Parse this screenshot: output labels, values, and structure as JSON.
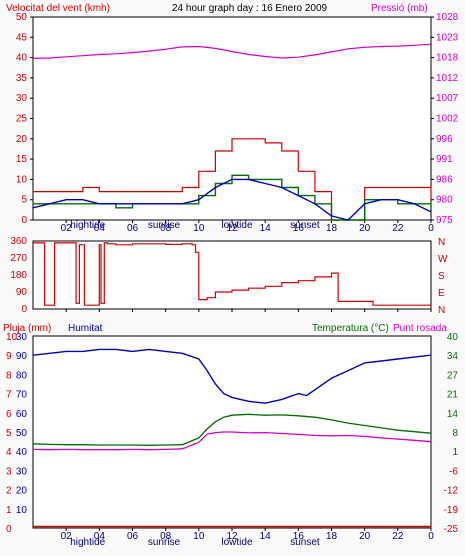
{
  "title": "24 hour graph day : 16 Enero 2009",
  "colors": {
    "wind": "#d00000",
    "gust": "#d00000",
    "avg": "#0000c0",
    "green": "#007000",
    "pressure": "#d000d0",
    "humidity": "#0000c0",
    "temp": "#007000",
    "dew": "#d000d0",
    "rain": "#d00000",
    "tick": "#000080"
  },
  "x_ticks": [
    "02",
    "04",
    "06",
    "08",
    "10",
    "12",
    "14",
    "16",
    "18",
    "20",
    "22",
    "0"
  ],
  "events": [
    "hightide",
    "sunrise",
    "lowtide",
    "sunset"
  ],
  "chart_data": [
    {
      "type": "line",
      "id": "wind-pressure",
      "left_label": "Velocitat del vent (kmh)",
      "right_label": "Pressió (mb)",
      "y_ticks": [
        "0",
        "5",
        "10",
        "15",
        "20",
        "25",
        "30",
        "35",
        "40",
        "45",
        "50"
      ],
      "ylim": [
        0,
        50
      ],
      "y2_ticks": [
        "975",
        "980",
        "986",
        "991",
        "996",
        "1002",
        "1007",
        "1012",
        "1018",
        "1023",
        "1028"
      ],
      "y2lim": [
        975,
        1028
      ],
      "series": [
        {
          "role": "gust",
          "x": [
            0,
            1,
            2,
            3,
            4,
            5,
            6,
            7,
            8,
            9,
            10,
            11,
            12,
            13,
            14,
            15,
            16,
            17,
            18,
            19,
            20,
            21,
            22,
            23,
            24
          ],
          "values": [
            7,
            7,
            7,
            8,
            7,
            7,
            7,
            7,
            7,
            8,
            12,
            17,
            20,
            20,
            19,
            17,
            12,
            7,
            0,
            0,
            8,
            8,
            8,
            8,
            5
          ]
        },
        {
          "role": "wind",
          "x": [
            0,
            1,
            2,
            3,
            4,
            5,
            6,
            7,
            8,
            9,
            10,
            11,
            12,
            13,
            14,
            15,
            16,
            17,
            18,
            19,
            20,
            21,
            22,
            23,
            24
          ],
          "values": [
            4,
            4,
            4,
            4,
            4,
            3,
            4,
            4,
            4,
            4,
            6,
            9,
            11,
            10,
            10,
            8,
            6,
            4,
            0,
            0,
            5,
            5,
            4,
            4,
            2
          ]
        },
        {
          "role": "avg",
          "x": [
            0,
            1,
            2,
            3,
            4,
            5,
            6,
            7,
            8,
            9,
            10,
            11,
            12,
            13,
            14,
            15,
            16,
            17,
            18,
            19,
            20,
            21,
            22,
            23,
            24
          ],
          "values": [
            3,
            4,
            5,
            5,
            4,
            4,
            4,
            4,
            4,
            4,
            5,
            8,
            10,
            10,
            9,
            8,
            6,
            4,
            1,
            0,
            4,
            5,
            5,
            4,
            2
          ]
        },
        {
          "role": "pressure",
          "x": [
            0,
            1,
            2,
            3,
            4,
            5,
            6,
            7,
            8,
            9,
            10,
            11,
            12,
            13,
            14,
            15,
            16,
            17,
            18,
            19,
            20,
            21,
            22,
            23,
            24
          ],
          "values": [
            1017.2,
            1017.3,
            1017.6,
            1017.9,
            1018.2,
            1018.4,
            1018.7,
            1019.1,
            1019.6,
            1020.2,
            1020.3,
            1019.8,
            1019.0,
            1018.2,
            1017.7,
            1017.3,
            1017.5,
            1018.1,
            1018.9,
            1019.7,
            1020.1,
            1020.3,
            1020.4,
            1020.6,
            1020.9
          ]
        }
      ]
    },
    {
      "type": "line",
      "id": "wind-direction",
      "y_ticks": [
        "0",
        "90",
        "180",
        "270",
        "360"
      ],
      "ylim": [
        0,
        360
      ],
      "y2_ticks": [
        "N",
        "W",
        "S",
        "E",
        "N"
      ],
      "series": [
        {
          "role": "direction",
          "x": [
            0,
            0.6,
            0.7,
            1.2,
            1.3,
            2.5,
            2.6,
            2.8,
            3.0,
            3.1,
            4.0,
            4.1,
            4.3,
            4.5,
            5.0,
            6.0,
            7.0,
            8.0,
            9.0,
            9.5,
            9.6,
            9.8,
            10.0,
            10.5,
            11.0,
            12.0,
            13.0,
            14.0,
            15.0,
            16.0,
            17.0,
            18.0,
            18.3,
            18.4,
            19.0,
            20.0,
            20.5,
            21.0,
            22.0,
            23.0,
            24.0
          ],
          "values": [
            350,
            350,
            20,
            20,
            350,
            350,
            30,
            340,
            340,
            20,
            340,
            30,
            350,
            345,
            340,
            345,
            345,
            342,
            345,
            345,
            340,
            300,
            50,
            60,
            90,
            100,
            110,
            120,
            140,
            150,
            170,
            190,
            190,
            40,
            40,
            40,
            20,
            20,
            20,
            20,
            20
          ]
        }
      ]
    },
    {
      "type": "line",
      "id": "rain-humidity-temp",
      "left_label": "Pluja (mm)",
      "mid_label": "Humitat",
      "right_label": "Temperatura (°C)",
      "right_label2": "Punt rosada",
      "y_ticks": [
        "0",
        "1",
        "2",
        "3",
        "4",
        "5",
        "6",
        "7",
        "8",
        "9",
        "10"
      ],
      "y_ticks_humidity": [
        "0",
        "10",
        "20",
        "30",
        "40",
        "50",
        "60",
        "70",
        "80",
        "90",
        "100"
      ],
      "y_ticks_top": "30",
      "ylim": [
        0,
        10
      ],
      "y2_ticks": [
        "-25",
        "-19",
        "-12",
        "-6",
        "1",
        "8",
        "14",
        "21",
        "27",
        "34",
        "40"
      ],
      "y2lim": [
        -25,
        40
      ],
      "series": [
        {
          "role": "humidity",
          "x": [
            0,
            1,
            2,
            3,
            4,
            5,
            6,
            7,
            8,
            9,
            10,
            10.5,
            11,
            11.5,
            12,
            13,
            14,
            15,
            16,
            16.5,
            17,
            18,
            19,
            20,
            21,
            22,
            23,
            24
          ],
          "values": [
            90,
            91,
            92,
            92,
            93,
            93,
            92,
            93,
            92,
            91,
            88,
            82,
            75,
            70,
            68,
            66,
            65,
            67,
            70,
            69,
            72,
            78,
            82,
            86,
            87,
            88,
            89,
            90
          ]
        },
        {
          "role": "temperature",
          "x": [
            0,
            1,
            2,
            3,
            4,
            5,
            6,
            7,
            8,
            9,
            10,
            10.5,
            11,
            11.5,
            12,
            13,
            14,
            15,
            16,
            17,
            18,
            19,
            20,
            21,
            22,
            23,
            24
          ],
          "values": [
            3.5,
            3.3,
            3.2,
            3.2,
            3.1,
            3.1,
            3.1,
            3.0,
            3.1,
            3.2,
            5.5,
            8.5,
            11,
            12.5,
            13.2,
            13.5,
            13.2,
            13.3,
            13.0,
            12.5,
            11.6,
            10.5,
            9.7,
            8.9,
            8.1,
            7.6,
            7.1
          ]
        },
        {
          "role": "dewpoint",
          "x": [
            0,
            1,
            2,
            3,
            4,
            5,
            6,
            7,
            8,
            9,
            10,
            10.5,
            11,
            11.5,
            12,
            13,
            14,
            15,
            16,
            17,
            18,
            19,
            20,
            21,
            22,
            23,
            24
          ],
          "values": [
            1.6,
            1.5,
            1.6,
            1.5,
            1.5,
            1.5,
            1.6,
            1.5,
            1.6,
            1.8,
            4.0,
            6.8,
            7.3,
            7.5,
            7.5,
            7.2,
            7.3,
            7.0,
            6.7,
            6.3,
            6.2,
            6.3,
            6.0,
            5.5,
            5.1,
            4.7,
            4.2
          ]
        },
        {
          "role": "rain",
          "x": [
            0,
            24
          ],
          "values": [
            0.08,
            0.08
          ]
        }
      ]
    }
  ]
}
